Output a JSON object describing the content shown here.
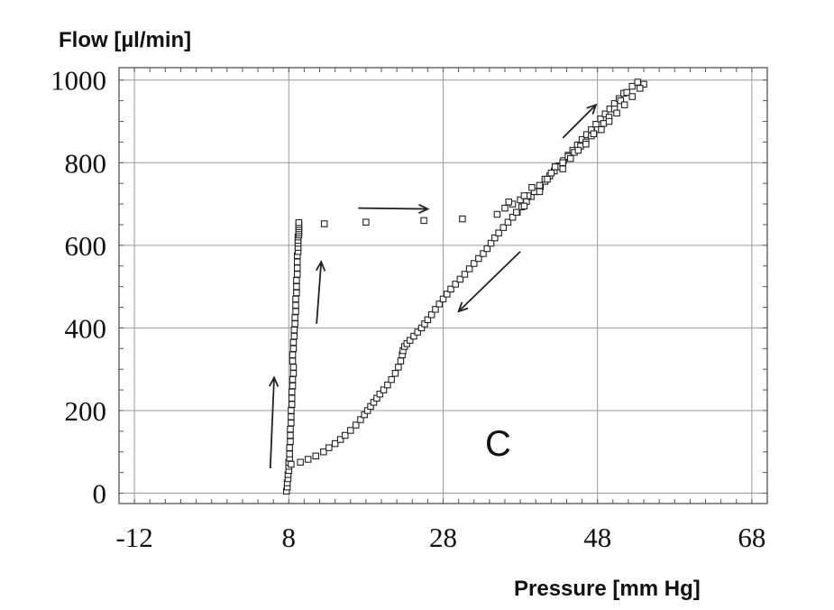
{
  "chart_data": {
    "type": "scatter",
    "title": "",
    "xlabel": "Pressure [mm Hg]",
    "ylabel": "Flow [µl/min]",
    "xlim": [
      -14,
      70
    ],
    "ylim": [
      -25,
      1030
    ],
    "xticks": [
      -12,
      8,
      28,
      48,
      68
    ],
    "yticks": [
      0,
      200,
      400,
      600,
      800,
      1000
    ],
    "grid": true,
    "annotation": "C",
    "series": [
      {
        "x": [
          7.7,
          7.8,
          7.8,
          7.9,
          7.9,
          8.0,
          8.0,
          8.0,
          8.1,
          8.1,
          8.1,
          8.2,
          8.2,
          8.2,
          8.3,
          8.3,
          8.3,
          8.4,
          8.4,
          8.4,
          8.5,
          8.5,
          8.6,
          8.6,
          8.5,
          8.5,
          8.6,
          8.6,
          8.7,
          8.7,
          8.8,
          8.8,
          8.9,
          8.9,
          8.9,
          9.0,
          9.0,
          9.0,
          9.1,
          9.1,
          9.1,
          9.1,
          9.2,
          9.2,
          9.2,
          9.2,
          9.2,
          9.3,
          9.3,
          9.3,
          9.3,
          9.3,
          9.3,
          9.3
        ],
        "y": [
          5,
          15,
          25,
          35,
          45,
          55,
          65,
          75,
          85,
          95,
          110,
          125,
          140,
          155,
          170,
          185,
          200,
          215,
          230,
          245,
          260,
          275,
          290,
          305,
          320,
          335,
          350,
          365,
          380,
          395,
          410,
          425,
          440,
          455,
          470,
          485,
          500,
          515,
          530,
          545,
          560,
          575,
          585,
          595,
          605,
          612,
          620,
          625,
          630,
          635,
          640,
          645,
          650,
          655
        ]
      },
      {
        "x": [
          12.6,
          18.0,
          25.5,
          30.5,
          35.0
        ],
        "y": [
          652,
          656,
          660,
          664,
          675
        ]
      },
      {
        "x": [
          8.3,
          9.5,
          10.5,
          11.5,
          12.5,
          13.2,
          14.0,
          14.7,
          15.3,
          16.0,
          16.7,
          17.3,
          17.8,
          18.2,
          18.6,
          19.0,
          19.4,
          19.8,
          20.3,
          20.8,
          21.3,
          21.8,
          22.2,
          22.5,
          22.7,
          22.8,
          23.0,
          23.3,
          23.7,
          24.2,
          24.7,
          25.2,
          25.6,
          26.0,
          26.5,
          27.0,
          27.5,
          28.0,
          28.5,
          29.0,
          29.6,
          30.2,
          30.8,
          31.4,
          32.0,
          32.6,
          33.2,
          33.7,
          34.2,
          34.7,
          35.2,
          35.8,
          36.4,
          37.0,
          37.6,
          38.2,
          38.8,
          39.4,
          40.0,
          40.6,
          41.2,
          41.8,
          42.4,
          43.0,
          43.6,
          44.2,
          44.8,
          45.4,
          46.0,
          46.6,
          47.2,
          47.8,
          48.4,
          49.0,
          49.6,
          50.2,
          50.8,
          51.4
        ],
        "y": [
          70,
          75,
          82,
          90,
          100,
          110,
          120,
          130,
          140,
          152,
          165,
          178,
          190,
          200,
          210,
          220,
          230,
          240,
          250,
          262,
          275,
          290,
          305,
          320,
          335,
          345,
          355,
          362,
          370,
          380,
          390,
          400,
          410,
          420,
          432,
          445,
          458,
          470,
          482,
          494,
          506,
          518,
          530,
          543,
          556,
          568,
          580,
          592,
          605,
          618,
          630,
          643,
          656,
          668,
          680,
          693,
          706,
          718,
          730,
          742,
          755,
          768,
          780,
          792,
          805,
          818,
          830,
          843,
          856,
          868,
          880,
          893,
          906,
          918,
          930,
          943,
          955,
          968
        ]
      },
      {
        "x": [
          36.0,
          37.0,
          38.0,
          38.5,
          39.0,
          39.8,
          40.5,
          41.2,
          42.0,
          42.8,
          43.5,
          44.2,
          45.0,
          45.8,
          46.5,
          47.2,
          48.0,
          48.8,
          49.5,
          50.2,
          51.0,
          51.8,
          52.5,
          53.2,
          54.0,
          36.5,
          37.5,
          38.5,
          39.5,
          40.5,
          41.5,
          42.5,
          43.5,
          44.5,
          45.5,
          46.5,
          47.5,
          48.5,
          49.5,
          50.5,
          51.5,
          52.5,
          53.5
        ],
        "y": [
          690,
          700,
          710,
          695,
          720,
          730,
          745,
          760,
          775,
          790,
          800,
          815,
          825,
          840,
          850,
          865,
          880,
          895,
          910,
          930,
          950,
          970,
          985,
          995,
          990,
          705,
          680,
          720,
          740,
          730,
          760,
          790,
          785,
          810,
          830,
          845,
          870,
          880,
          900,
          920,
          940,
          960,
          980
        ]
      }
    ],
    "arrows": [
      {
        "from": [
          5.6,
          60
        ],
        "to": [
          6.1,
          280
        ]
      },
      {
        "from": [
          11.6,
          410
        ],
        "to": [
          12.2,
          560
        ]
      },
      {
        "from": [
          17.0,
          690
        ],
        "to": [
          26.0,
          688
        ]
      },
      {
        "from": [
          38.0,
          585
        ],
        "to": [
          30.0,
          440
        ]
      },
      {
        "from": [
          43.5,
          860
        ],
        "to": [
          47.8,
          940
        ]
      }
    ]
  }
}
